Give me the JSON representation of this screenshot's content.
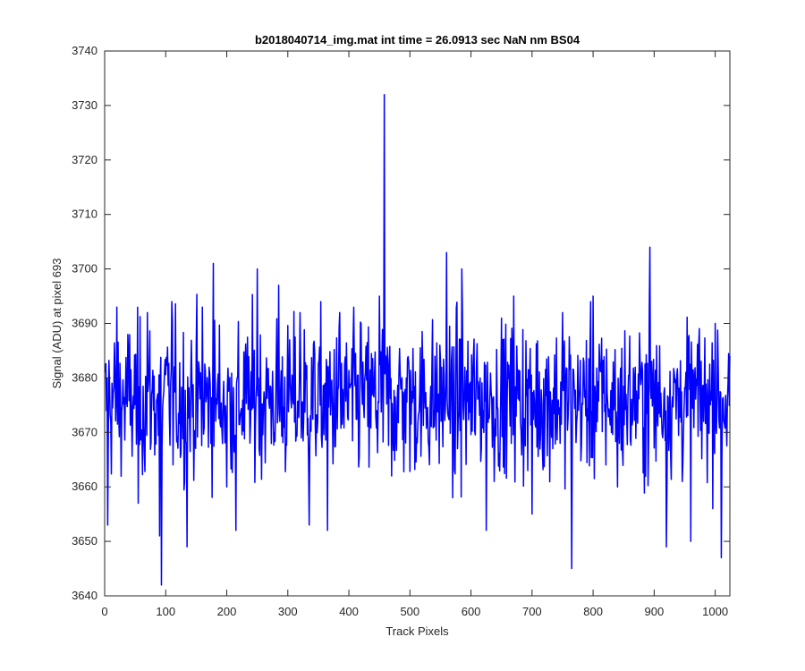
{
  "chart_data": {
    "type": "line",
    "title": "b2018040714_img.mat int time = 26.0913 sec  NaN nm BS04",
    "xlabel": "Track Pixels",
    "ylabel": "Signal (ADU) at pixel 693",
    "xlim": [
      0,
      1024
    ],
    "ylim": [
      3640,
      3740
    ],
    "xticks": [
      0,
      100,
      200,
      300,
      400,
      500,
      600,
      700,
      800,
      900,
      1000
    ],
    "yticks": [
      3640,
      3650,
      3660,
      3670,
      3680,
      3690,
      3700,
      3710,
      3720,
      3730,
      3740
    ],
    "grid": false,
    "legend": "none",
    "series": [
      {
        "color": "#0000ff",
        "description_note": "",
        "x_start": 1,
        "x_step": 1,
        "baseline_estimate": 3676,
        "notable_points": [
          {
            "x": 1,
            "y": 3681
          },
          {
            "x": 5,
            "y": 3653
          },
          {
            "x": 20,
            "y": 3693
          },
          {
            "x": 55,
            "y": 3657
          },
          {
            "x": 70,
            "y": 3692
          },
          {
            "x": 90,
            "y": 3651
          },
          {
            "x": 93,
            "y": 3642
          },
          {
            "x": 110,
            "y": 3694
          },
          {
            "x": 135,
            "y": 3649
          },
          {
            "x": 160,
            "y": 3693
          },
          {
            "x": 178,
            "y": 3701
          },
          {
            "x": 200,
            "y": 3660
          },
          {
            "x": 215,
            "y": 3652
          },
          {
            "x": 250,
            "y": 3700
          },
          {
            "x": 285,
            "y": 3697
          },
          {
            "x": 320,
            "y": 3692
          },
          {
            "x": 335,
            "y": 3653
          },
          {
            "x": 365,
            "y": 3652
          },
          {
            "x": 385,
            "y": 3692
          },
          {
            "x": 420,
            "y": 3690
          },
          {
            "x": 450,
            "y": 3695
          },
          {
            "x": 458,
            "y": 3732
          },
          {
            "x": 470,
            "y": 3662
          },
          {
            "x": 560,
            "y": 3703
          },
          {
            "x": 570,
            "y": 3658
          },
          {
            "x": 585,
            "y": 3700
          },
          {
            "x": 625,
            "y": 3652
          },
          {
            "x": 670,
            "y": 3695
          },
          {
            "x": 700,
            "y": 3655
          },
          {
            "x": 750,
            "y": 3692
          },
          {
            "x": 765,
            "y": 3645
          },
          {
            "x": 800,
            "y": 3695
          },
          {
            "x": 840,
            "y": 3660
          },
          {
            "x": 893,
            "y": 3704
          },
          {
            "x": 920,
            "y": 3649
          },
          {
            "x": 960,
            "y": 3650
          },
          {
            "x": 1000,
            "y": 3690
          },
          {
            "x": 1010,
            "y": 3647
          },
          {
            "x": 1024,
            "y": 3684
          }
        ]
      }
    ]
  }
}
